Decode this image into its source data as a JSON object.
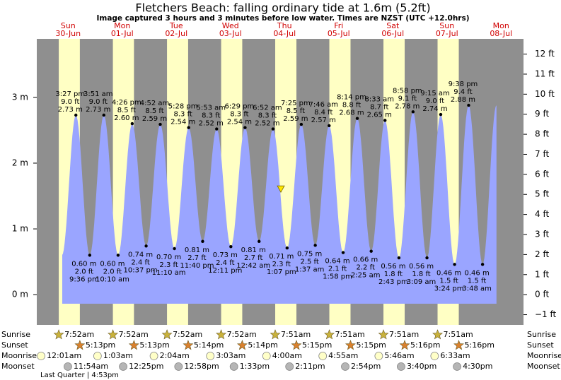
{
  "chart_data": {
    "type": "tide",
    "title": "Fletchers Beach: falling  ordinary tide at 1.6m (5.2ft)",
    "subtitle": "Image captured 3 hours and 3 minutes before low water. Times are NZST (UTC +12.0hrs)",
    "ylim": [
      -0.46,
      3.89
    ],
    "yticks": [
      {
        "value": 0,
        "label": "0 m"
      },
      {
        "value": 1,
        "label": "1 m"
      },
      {
        "value": 2,
        "label": "2 m"
      },
      {
        "value": 3,
        "label": "3 m"
      }
    ],
    "y2lim": [
      -1.51,
      12.76
    ],
    "y2ticks": [
      {
        "value": -1,
        "label": "−1 ft"
      },
      {
        "value": 0,
        "label": "0 ft"
      },
      {
        "value": 1,
        "label": "1 ft"
      },
      {
        "value": 2,
        "label": "2 ft"
      },
      {
        "value": 3,
        "label": "3 ft"
      },
      {
        "value": 4,
        "label": "4 ft"
      },
      {
        "value": 5,
        "label": "5 ft"
      },
      {
        "value": 6,
        "label": "6 ft"
      },
      {
        "value": 7,
        "label": "7 ft"
      },
      {
        "value": 8,
        "label": "8 ft"
      },
      {
        "value": 9,
        "label": "9 ft"
      },
      {
        "value": 10,
        "label": "10 ft"
      },
      {
        "value": 11,
        "label": "11 ft"
      },
      {
        "value": 12,
        "label": "12 ft"
      }
    ],
    "current_level": 1.6,
    "colors": {
      "night": "#8f8f8f",
      "day": "#ffffc4",
      "water": "#9aa5ff",
      "sunrise": "#c9b23c",
      "sunset": "#d9812e",
      "moonrise": "#ffffc8",
      "moonset": "#b5b5b5"
    },
    "row_labels": {
      "sunrise": "Sunrise",
      "sunset": "Sunset",
      "moonrise": "Moonrise",
      "moonset": "Moonset"
    },
    "moon_phase": "Last Quarter | 4:53pm",
    "days": [
      {
        "weekday": "Sun",
        "date": "30-Jun",
        "sunrise": "7:52am",
        "sunset": "5:13pm",
        "moonrise": "12:01am",
        "moonset": "11:54am",
        "tides": [
          {
            "time": "3:27 pm",
            "height": 2.73,
            "height_label": "2.73 m",
            "feet_label": "9.0 ft"
          },
          {
            "time": "9:36 pm",
            "height": 0.6,
            "height_label": "0.60 m",
            "feet_label": "2.0 ft"
          }
        ]
      },
      {
        "weekday": "Mon",
        "date": "01-Jul",
        "sunrise": "7:52am",
        "sunset": "5:13pm",
        "moonrise": "1:03am",
        "moonset": "12:25pm",
        "tides": [
          {
            "time": "3:51 am",
            "height": 2.73,
            "height_label": "2.73 m",
            "feet_label": "9.0 ft"
          },
          {
            "time": "10:10 am",
            "height": 0.6,
            "height_label": "0.60 m",
            "feet_label": "2.0 ft"
          },
          {
            "time": "4:26 pm",
            "height": 2.6,
            "height_label": "2.60 m",
            "feet_label": "8.5 ft"
          },
          {
            "time": "10:37 pm",
            "height": 0.74,
            "height_label": "0.74 m",
            "feet_label": "2.4 ft"
          }
        ]
      },
      {
        "weekday": "Tue",
        "date": "02-Jul",
        "sunrise": "7:52am",
        "sunset": "5:14pm",
        "moonrise": "2:04am",
        "moonset": "12:58pm",
        "tides": [
          {
            "time": "4:52 am",
            "height": 2.59,
            "height_label": "2.59 m",
            "feet_label": "8.5 ft"
          },
          {
            "time": "11:10 am",
            "height": 0.7,
            "height_label": "0.70 m",
            "feet_label": "2.3 ft"
          },
          {
            "time": "5:28 pm",
            "height": 2.54,
            "height_label": "2.54 m",
            "feet_label": "8.3 ft"
          },
          {
            "time": "11:40 pm",
            "height": 0.81,
            "height_label": "0.81 m",
            "feet_label": "2.7 ft"
          }
        ]
      },
      {
        "weekday": "Wed",
        "date": "03-Jul",
        "sunrise": "7:52am",
        "sunset": "5:14pm",
        "moonrise": "3:03am",
        "moonset": "1:33pm",
        "tides": [
          {
            "time": "5:53 am",
            "height": 2.52,
            "height_label": "2.52 m",
            "feet_label": "8.3 ft"
          },
          {
            "time": "12:11 pm",
            "height": 0.73,
            "height_label": "0.73 m",
            "feet_label": "2.4 ft"
          },
          {
            "time": "6:29 pm",
            "height": 2.54,
            "height_label": "2.54 m",
            "feet_label": "8.3 ft"
          }
        ]
      },
      {
        "weekday": "Thu",
        "date": "04-Jul",
        "sunrise": "7:51am",
        "sunset": "5:15pm",
        "moonrise": "4:00am",
        "moonset": "2:11pm",
        "tides": [
          {
            "time": "12:42 am",
            "height": 0.81,
            "height_label": "0.81 m",
            "feet_label": "2.7 ft"
          },
          {
            "time": "6:52 am",
            "height": 2.52,
            "height_label": "2.52 m",
            "feet_label": "8.3 ft"
          },
          {
            "time": "1:07 pm",
            "height": 0.71,
            "height_label": "0.71 m",
            "feet_label": "2.3 ft"
          },
          {
            "time": "7:25 pm",
            "height": 2.59,
            "height_label": "2.59 m",
            "feet_label": "8.5 ft"
          }
        ]
      },
      {
        "weekday": "Fri",
        "date": "05-Jul",
        "sunrise": "7:51am",
        "sunset": "5:15pm",
        "moonrise": "4:55am",
        "moonset": "2:54pm",
        "tides": [
          {
            "time": "1:37 am",
            "height": 0.75,
            "height_label": "0.75 m",
            "feet_label": "2.5 ft"
          },
          {
            "time": "7:46 am",
            "height": 2.57,
            "height_label": "2.57 m",
            "feet_label": "8.4 ft"
          },
          {
            "time": "1:58 pm",
            "height": 0.64,
            "height_label": "0.64 m",
            "feet_label": "2.1 ft"
          },
          {
            "time": "8:14 pm",
            "height": 2.68,
            "height_label": "2.68 m",
            "feet_label": "8.8 ft"
          }
        ]
      },
      {
        "weekday": "Sat",
        "date": "06-Jul",
        "sunrise": "7:51am",
        "sunset": "5:16pm",
        "moonrise": "5:46am",
        "moonset": "3:40pm",
        "tides": [
          {
            "time": "2:25 am",
            "height": 0.66,
            "height_label": "0.66 m",
            "feet_label": "2.2 ft"
          },
          {
            "time": "8:33 am",
            "height": 2.65,
            "height_label": "2.65 m",
            "feet_label": "8.7 ft"
          },
          {
            "time": "2:43 pm",
            "height": 0.56,
            "height_label": "0.56 m",
            "feet_label": "1.8 ft"
          },
          {
            "time": "8:58 pm",
            "height": 2.78,
            "height_label": "2.78 m",
            "feet_label": "9.1 ft"
          }
        ]
      },
      {
        "weekday": "Sun",
        "date": "07-Jul",
        "sunrise": "7:51am",
        "sunset": "5:16pm",
        "moonrise": "6:33am",
        "moonset": "4:30pm",
        "tides": [
          {
            "time": "3:09 am",
            "height": 0.56,
            "height_label": "0.56 m",
            "feet_label": "1.8 ft"
          },
          {
            "time": "9:15 am",
            "height": 2.74,
            "height_label": "2.74 m",
            "feet_label": "9.0 ft"
          },
          {
            "time": "3:24 pm",
            "height": 0.46,
            "height_label": "0.46 m",
            "feet_label": "1.5 ft"
          },
          {
            "time": "9:38 pm",
            "height": 2.88,
            "height_label": "2.88 m",
            "feet_label": "9.4 ft"
          }
        ]
      },
      {
        "weekday": "Mon",
        "date": "08-Jul",
        "tides": [
          {
            "time": "3:48 am",
            "height": 0.46,
            "height_label": "0.46 m",
            "feet_label": "1.5 ft"
          }
        ]
      }
    ]
  }
}
